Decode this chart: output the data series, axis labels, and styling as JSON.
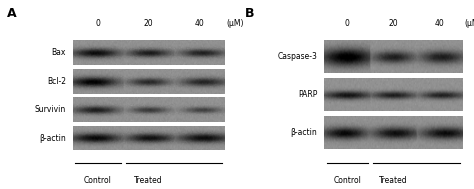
{
  "panel_A_label": "A",
  "panel_B_label": "B",
  "panel_A_rows": [
    "Bax",
    "Bcl-2",
    "Survivin",
    "β-actin"
  ],
  "panel_B_rows": [
    "Caspase-3",
    "PARP",
    "β-actin"
  ],
  "conc_labels": [
    "0",
    "20",
    "40",
    "(μM)"
  ],
  "control_label": "Control",
  "treated_label": "Treated",
  "bg_color": "#ffffff"
}
